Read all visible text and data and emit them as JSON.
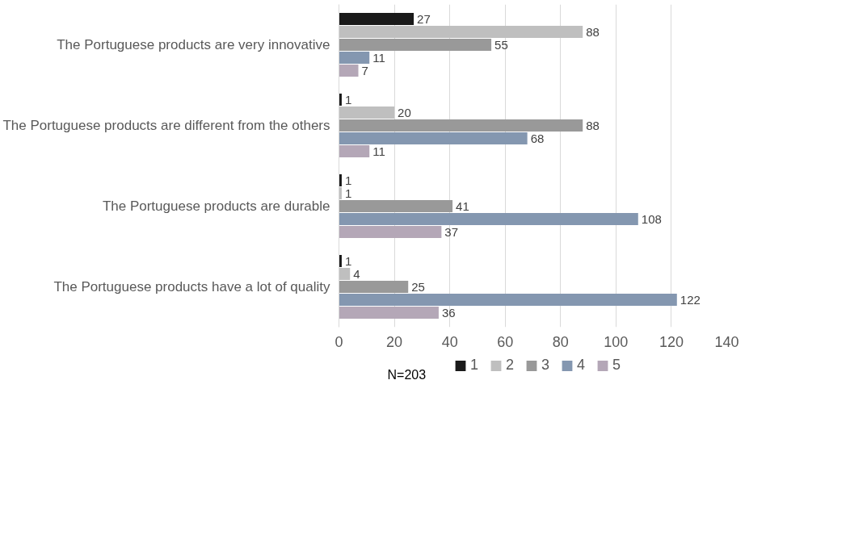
{
  "chart_data": {
    "type": "bar",
    "orientation": "horizontal",
    "categories": [
      "The Portuguese products are very innovative",
      "The Portuguese products are different from the others",
      "The Portuguese products are durable",
      "The Portuguese products have a lot of quality"
    ],
    "series": [
      {
        "name": "1",
        "color": "#1a1a1a",
        "values": [
          27,
          1,
          1,
          1
        ]
      },
      {
        "name": "2",
        "color": "#bfbfbf",
        "values": [
          88,
          20,
          1,
          4
        ]
      },
      {
        "name": "3",
        "color": "#999999",
        "values": [
          55,
          88,
          41,
          25
        ]
      },
      {
        "name": "4",
        "color": "#8497b0",
        "values": [
          11,
          68,
          108,
          122
        ]
      },
      {
        "name": "5",
        "color": "#b4a7b7",
        "values": [
          7,
          11,
          37,
          36
        ]
      }
    ],
    "xlim": [
      0,
      140
    ],
    "xticks": [
      0,
      20,
      40,
      60,
      80,
      100,
      120,
      140
    ],
    "grid": "x",
    "legend": "bottom",
    "data_labels": true,
    "annotations": [
      "N=203"
    ]
  }
}
